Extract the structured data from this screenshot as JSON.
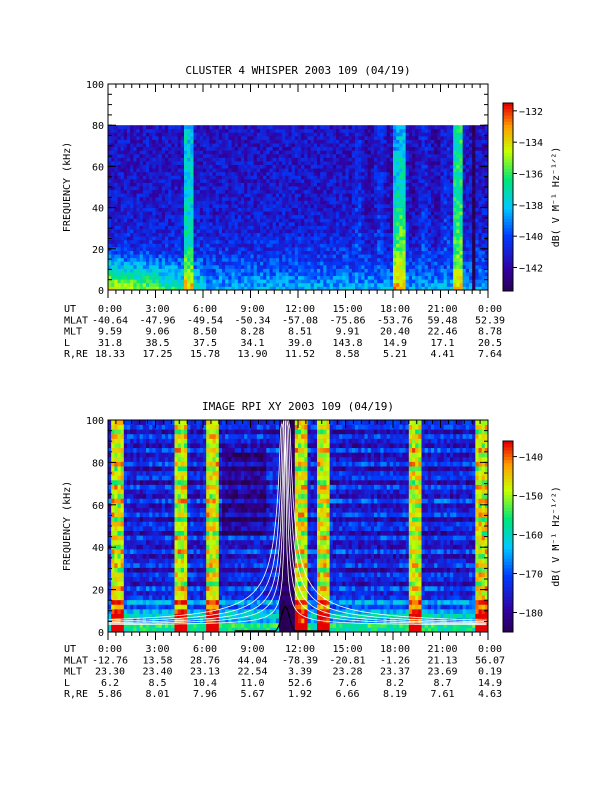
{
  "chart_data": [
    {
      "type": "heatmap",
      "title": "CLUSTER 4 WHISPER 2003 109 (04/19)",
      "ylabel": "FREQUENCY (kHz)",
      "ylim": [
        0,
        100
      ],
      "yticks": [
        0,
        20,
        40,
        60,
        80,
        100
      ],
      "data_top_khz": 80,
      "colorbar": {
        "label": "dB( V M⁻¹ Hz⁻¹ᐟ²)",
        "range": [
          -143.5,
          -131.5
        ],
        "ticks": [
          -132,
          -134,
          -136,
          -138,
          -140,
          -142
        ]
      },
      "ephemeris": {
        "row_labels": [
          "UT",
          "MLAT",
          "MLT",
          "L",
          "R,RE"
        ],
        "UT": [
          "0:00",
          "3:00",
          "6:00",
          "9:00",
          "12:00",
          "15:00",
          "18:00",
          "21:00",
          "0:00"
        ],
        "MLAT": [
          "-40.64",
          "-47.96",
          "-49.54",
          "-50.34",
          "-57.08",
          "-75.86",
          "-53.76",
          "59.48",
          "52.39"
        ],
        "MLT": [
          "9.59",
          "9.06",
          "8.50",
          "8.28",
          "8.51",
          "9.91",
          "20.40",
          "22.46",
          "8.78"
        ],
        "L": [
          "31.8",
          "38.5",
          "37.5",
          "34.1",
          "39.0",
          "143.8",
          "14.9",
          "17.1",
          "20.5"
        ],
        "R,RE": [
          "18.33",
          "17.25",
          "15.78",
          "13.90",
          "11.52",
          "8.58",
          "5.21",
          "4.41",
          "7.64"
        ]
      }
    },
    {
      "type": "heatmap",
      "title": "IMAGE RPI XY 2003 109 (04/19)",
      "ylabel": "FREQUENCY (kHz)",
      "ylim": [
        0,
        100
      ],
      "yticks": [
        0,
        20,
        40,
        60,
        80,
        100
      ],
      "data_top_khz": 100,
      "colorbar": {
        "label": "dB( V M⁻¹ Hz⁻¹ᐟ²)",
        "range": [
          -185,
          -136
        ],
        "ticks": [
          -140,
          -150,
          -160,
          -170,
          -180
        ]
      },
      "ephemeris": {
        "row_labels": [
          "UT",
          "MLAT",
          "MLT",
          "L",
          "R,RE"
        ],
        "UT": [
          "0:00",
          "3:00",
          "6:00",
          "9:00",
          "12:00",
          "15:00",
          "18:00",
          "21:00",
          "0:00"
        ],
        "MLAT": [
          "-12.76",
          "13.58",
          "28.76",
          "44.04",
          "-78.39",
          "-20.81",
          "-1.26",
          "21.13",
          "56.07"
        ],
        "MLT": [
          "23.30",
          "23.40",
          "23.13",
          "22.54",
          "3.39",
          "23.28",
          "23.37",
          "23.69",
          "0.19"
        ],
        "L": [
          "6.2",
          "8.5",
          "10.4",
          "11.0",
          "52.6",
          "7.6",
          "8.2",
          "8.7",
          "14.9"
        ],
        "R,RE": [
          "5.86",
          "8.01",
          "7.96",
          "5.67",
          "1.92",
          "6.66",
          "8.19",
          "7.61",
          "4.63"
        ]
      }
    }
  ]
}
